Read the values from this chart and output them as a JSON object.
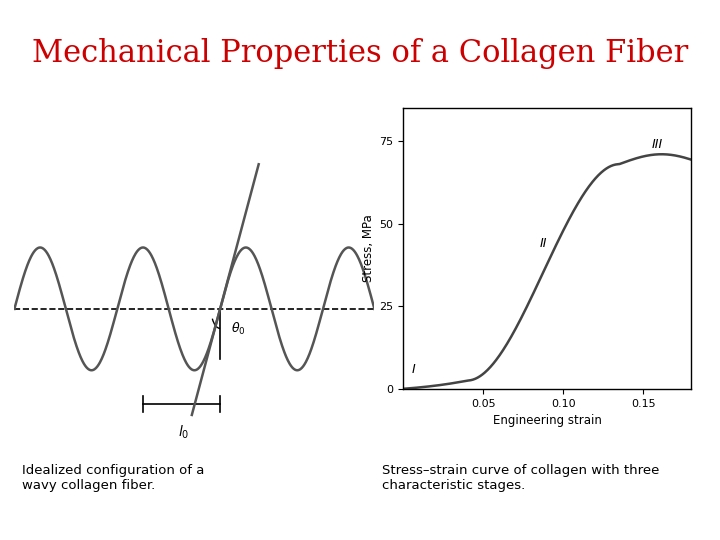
{
  "title": "Mechanical Properties of a Collagen Fiber",
  "title_color": "#cc0000",
  "title_fontsize": 22,
  "bg_color": "#ffffff",
  "left_caption": "Idealized configuration of a\nwavy collagen fiber.",
  "right_caption": "Stress–strain curve of collagen with three\ncharacteristic stages.",
  "stress_strain": {
    "xlabel": "Engineering strain",
    "ylabel": "Stress, MPa",
    "xticks": [
      0.05,
      0.1,
      0.15
    ],
    "yticks": [
      0,
      25,
      50,
      75
    ],
    "ylim": [
      0,
      85
    ],
    "xlim": [
      0,
      0.18
    ],
    "label_I": [
      0.005,
      4,
      "I"
    ],
    "label_II": [
      0.085,
      42,
      "II"
    ],
    "label_III": [
      0.155,
      72,
      "III"
    ]
  }
}
